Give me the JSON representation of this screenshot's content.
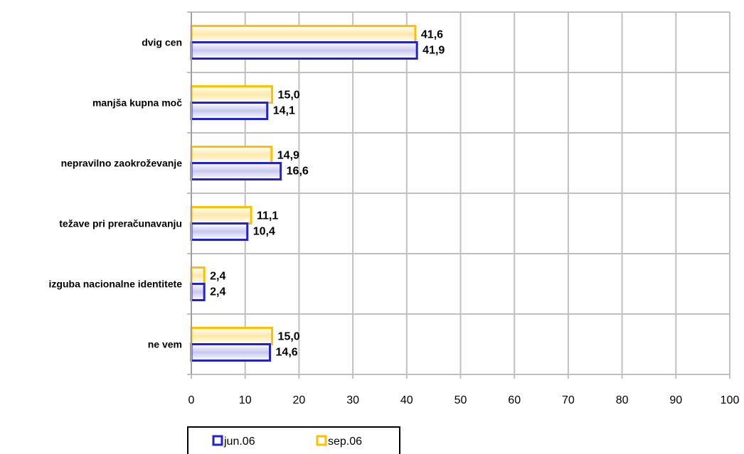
{
  "chart_data": {
    "type": "bar",
    "orientation": "horizontal",
    "categories": [
      "dvig cen",
      "manjša kupna moč",
      "nepravilno zaokroževanje",
      "težave pri preračunavanju",
      "izguba nacionalne identitete",
      "ne vem"
    ],
    "series": [
      {
        "name": "sep.06",
        "color": "#FFC000",
        "values": [
          41.6,
          15.0,
          14.9,
          11.1,
          2.4,
          15.0
        ],
        "labels": [
          "41,6",
          "15,0",
          "14,9",
          "11,1",
          "2,4",
          "15,0"
        ]
      },
      {
        "name": "jun.06",
        "color": "#2222CC",
        "values": [
          41.9,
          14.1,
          16.6,
          10.4,
          2.4,
          14.6
        ],
        "labels": [
          "41,9",
          "14,1",
          "16,6",
          "10,4",
          "2,4",
          "14,6"
        ]
      }
    ],
    "xlim": [
      0,
      100
    ],
    "xticks": [
      "0",
      "10",
      "20",
      "30",
      "40",
      "50",
      "60",
      "70",
      "80",
      "90",
      "100"
    ],
    "grid": true,
    "legend": {
      "placement": "bottom-left",
      "entries": [
        "jun.06",
        "sep.06"
      ]
    }
  }
}
